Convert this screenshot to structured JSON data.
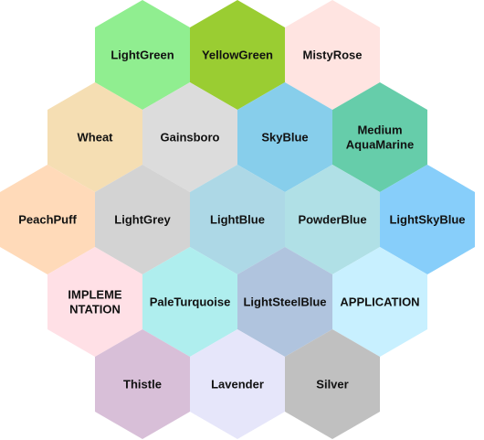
{
  "diagram": {
    "cells": [
      {
        "lines": [
          "LightGreen"
        ],
        "color": "#90EE90"
      },
      {
        "lines": [
          "YellowGreen"
        ],
        "color": "#9ACD32"
      },
      {
        "lines": [
          "MistyRose"
        ],
        "color": "#FFE4E1"
      },
      {
        "lines": [
          "Wheat"
        ],
        "color": "#F5DEB3"
      },
      {
        "lines": [
          "Gainsboro"
        ],
        "color": "#DCDCDC"
      },
      {
        "lines": [
          "SkyBlue"
        ],
        "color": "#87CEEB"
      },
      {
        "lines": [
          "Medium",
          "AquaMarine"
        ],
        "color": "#66CDAA"
      },
      {
        "lines": [
          "PeachPuff"
        ],
        "color": "#FFDAB9"
      },
      {
        "lines": [
          "LightGrey"
        ],
        "color": "#D3D3D3"
      },
      {
        "lines": [
          "LightBlue"
        ],
        "color": "#ADD8E6"
      },
      {
        "lines": [
          "PowderBlue"
        ],
        "color": "#B0E0E6"
      },
      {
        "lines": [
          "LightSkyBlue"
        ],
        "color": "#87CEFA"
      },
      {
        "lines": [
          "IMPLEME",
          "NTATION"
        ],
        "color": "#FFE0E6"
      },
      {
        "lines": [
          "PaleTurquoise"
        ],
        "color": "#AFEEEE"
      },
      {
        "lines": [
          "LightSteelBlue"
        ],
        "color": "#B0C4DE"
      },
      {
        "lines": [
          "APPLICATION"
        ],
        "color": "#C8F0FF"
      },
      {
        "lines": [
          "Thistle"
        ],
        "color": "#D8BFD8"
      },
      {
        "lines": [
          "Lavender"
        ],
        "color": "#E6E6FA"
      },
      {
        "lines": [
          "Silver"
        ],
        "color": "#C0C0C0"
      }
    ]
  }
}
